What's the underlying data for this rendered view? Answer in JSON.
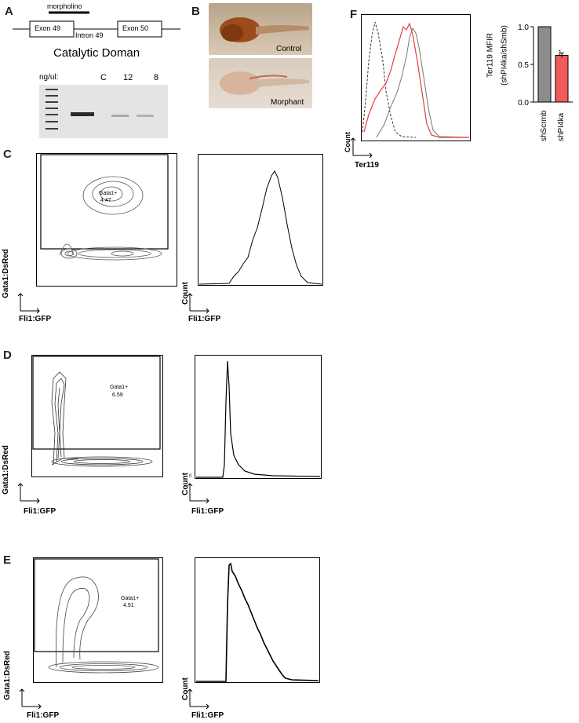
{
  "panels": {
    "A": {
      "letter": "A",
      "morpholino": "morpholino",
      "exon49": "Exon 49",
      "intron": "Intron 49",
      "exon50": "Exon 50",
      "title": "Catalytic Doman",
      "gel_lanes": [
        "ng/ul:",
        "C",
        "12",
        "8"
      ]
    },
    "B": {
      "letter": "B",
      "control": "Control",
      "morphant": "Morphant"
    },
    "C": {
      "letter": "C",
      "gate_name": "Gata1+",
      "gate_value": "4.47",
      "y_label": "Gata1:DsRed",
      "x_label": "Fli1:GFP",
      "hist_y": "Count",
      "hist_x": "Fli1:GFP"
    },
    "D": {
      "letter": "D",
      "gate_name": "Gata1+",
      "gate_value": "6.59",
      "y_label": "Gata1:DsRed",
      "x_label": "Fli1:GFP",
      "hist_y": "Count",
      "hist_x": "Fli1:GFP",
      "hist_zero": "0"
    },
    "E": {
      "letter": "E",
      "gate_name": "Gata1+",
      "gate_value": "4.91",
      "y_label": "Gata1:DsRed",
      "x_label": "Fli1:GFP",
      "hist_y": "Count",
      "hist_x": "Fli1:GFP"
    },
    "F": {
      "letter": "F",
      "hist_y": "Count",
      "hist_x": "Ter119",
      "bar_ylabel_1": "Ter119 MFIR",
      "bar_ylabel_2": "(shPI4ka/shSmb)",
      "significance": "****"
    }
  },
  "colors": {
    "control_bar": "#8c8c8c",
    "knockdown_bar": "#f05a5a",
    "red_trace": "#e83b3b"
  },
  "chart_data": {
    "type": "bar",
    "categories": [
      "shScrmb",
      "shPI4ka"
    ],
    "values": [
      1.0,
      0.62
    ],
    "ylabel": "Ter119 MFIR (shPI4ka/shSmb)",
    "ylim": [
      0.0,
      1.0
    ],
    "yticks": [
      "0.0",
      "0.5",
      "1.0"
    ]
  }
}
